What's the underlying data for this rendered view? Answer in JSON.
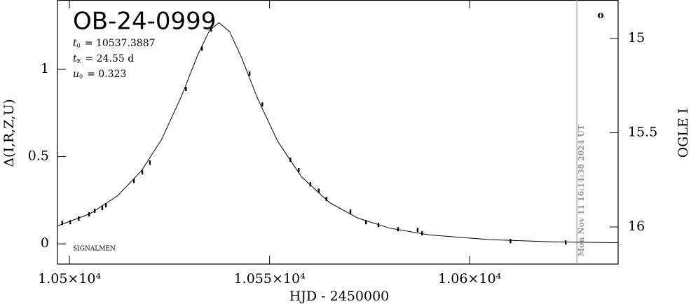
{
  "chart_data": {
    "type": "scatter",
    "title": "OB-24-0999",
    "parameters": [
      {
        "symbol": "t",
        "sub": "0",
        "text": "= 10537.3887"
      },
      {
        "symbol": "t",
        "sub": "E",
        "text": "= 24.55 d"
      },
      {
        "symbol": "u",
        "sub": "0",
        "text": "= 0.323"
      }
    ],
    "credit": "SIGNALMEN",
    "corner_mark": "o",
    "x_label": "HJD - 2450000",
    "y_label": "Δ(I,R,Z,U)",
    "y2_label": "OGLE I",
    "xlim": [
      10497.0,
      10637.1
    ],
    "ylim": [
      -0.116,
      1.398
    ],
    "y2lim": [
      16.197,
      14.796
    ],
    "xticks": [
      {
        "value": 10500,
        "label": "1.05×10⁴"
      },
      {
        "value": 10550,
        "label": "1.055×10⁴"
      },
      {
        "value": 10600,
        "label": "1.06×10⁴"
      }
    ],
    "yticks": [
      0,
      0.5,
      1
    ],
    "y2ticks": [
      15,
      15.5,
      16
    ],
    "time_marker": {
      "x": 10626.8,
      "label": "Mon Nov 11 16:14:38 2024 UT",
      "color": "#999999"
    },
    "series": [
      {
        "style": "points",
        "color": "#000000",
        "x": [
          10498.2,
          10500.2,
          10502.3,
          10504.9,
          10506.3,
          10508.2,
          10509.1,
          10516.1,
          10518.2,
          10520.1,
          10529.1,
          10533.1,
          10535.4,
          10545.0,
          10548.2,
          10555.2,
          10557.3,
          10560.2,
          10562.3,
          10564.2,
          10570.2,
          10574.1,
          10577.2,
          10582.1,
          10587.0,
          10588.1,
          10610.2,
          10624.0
        ],
        "values": [
          0.12,
          0.124,
          0.145,
          0.169,
          0.189,
          0.205,
          0.221,
          0.361,
          0.41,
          0.466,
          0.888,
          1.12,
          1.229,
          0.976,
          0.799,
          0.482,
          0.422,
          0.341,
          0.305,
          0.257,
          0.185,
          0.124,
          0.108,
          0.084,
          0.08,
          0.06,
          0.016,
          0.008
        ]
      },
      {
        "style": "line",
        "color": "#000000",
        "x": [
          10497,
          10505,
          10512,
          10518,
          10523,
          10528,
          10532,
          10535,
          10537.39,
          10540,
          10543,
          10547,
          10552,
          10558,
          10565,
          10572,
          10580,
          10590,
          10605,
          10620,
          10637
        ],
        "values": [
          0.103,
          0.171,
          0.275,
          0.419,
          0.598,
          0.847,
          1.08,
          1.224,
          1.268,
          1.217,
          1.068,
          0.834,
          0.589,
          0.384,
          0.236,
          0.148,
          0.09,
          0.051,
          0.024,
          0.012,
          0.006
        ]
      }
    ]
  }
}
